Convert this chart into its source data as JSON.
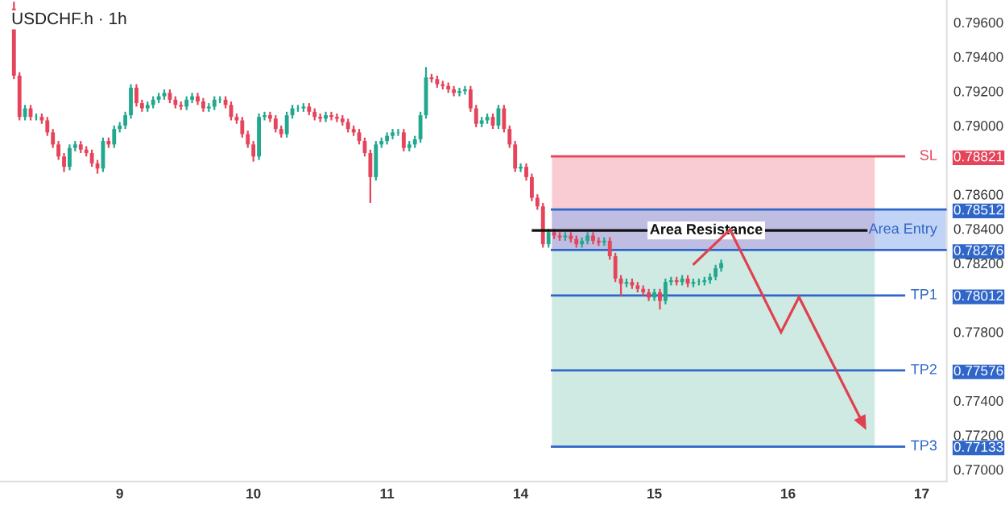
{
  "chart_data": {
    "type": "candlestick",
    "title": "USDCHF.h · 1h",
    "categories": [
      null,
      null,
      null,
      null,
      null,
      null,
      null,
      null,
      null,
      null,
      null,
      null,
      null,
      null,
      null,
      null,
      null,
      null,
      null,
      null,
      null,
      "9",
      null,
      null,
      null,
      null,
      null,
      null,
      null,
      null,
      null,
      null,
      null,
      null,
      null,
      null,
      null,
      null,
      null,
      null,
      null,
      null,
      null,
      null,
      null,
      "10",
      null,
      null,
      null,
      null,
      null,
      null,
      null,
      null,
      null,
      null,
      null,
      null,
      null,
      null,
      null,
      null,
      null,
      null,
      null,
      null,
      null,
      null,
      null,
      "11",
      null,
      null,
      null,
      null,
      null,
      null,
      null,
      null,
      null,
      null,
      null,
      null,
      null,
      null,
      null,
      null,
      null,
      null,
      null,
      null,
      null,
      null,
      null,
      "14",
      null,
      null,
      null,
      null,
      null,
      null,
      null,
      null,
      null,
      null,
      null,
      null,
      null,
      null,
      null,
      null,
      null,
      null,
      null,
      null,
      null,
      null,
      null,
      "15",
      null,
      null,
      null,
      null,
      null,
      null,
      null,
      null,
      null,
      null,
      null,
      null,
      null,
      null,
      null,
      null,
      null,
      null,
      null,
      null,
      null,
      null,
      null,
      "16",
      null,
      null,
      null,
      null,
      null,
      null,
      null,
      null,
      null,
      null,
      null,
      null,
      null,
      null,
      null,
      null,
      null,
      null,
      null,
      null,
      null,
      null,
      null,
      "17",
      null,
      null,
      null,
      null
    ],
    "ohlc": [
      null,
      null,
      [
        0.7968,
        0.7972,
        0.7927,
        0.7929
      ],
      [
        0.7929,
        0.7931,
        0.7903,
        0.7905
      ],
      [
        0.7905,
        0.7912,
        0.7903,
        0.791
      ],
      [
        0.791,
        0.7912,
        0.7903,
        0.7905
      ],
      [
        0.7905,
        0.7907,
        0.7903,
        0.7905
      ],
      [
        0.7905,
        0.7907,
        0.7901,
        0.7903
      ],
      [
        0.7903,
        0.7905,
        0.7894,
        0.7896
      ],
      [
        0.7896,
        0.7898,
        0.7887,
        0.7889
      ],
      [
        0.7889,
        0.7891,
        0.788,
        0.7882
      ],
      [
        0.7882,
        0.7884,
        0.7873,
        0.7876
      ],
      [
        0.7876,
        0.7889,
        0.7874,
        0.7887
      ],
      [
        0.7887,
        0.7891,
        0.7885,
        0.7889
      ],
      [
        0.7889,
        0.7891,
        0.7884,
        0.7886
      ],
      [
        0.7886,
        0.7888,
        0.7882,
        0.7884
      ],
      [
        0.7884,
        0.7886,
        0.7876,
        0.7878
      ],
      [
        0.7878,
        0.788,
        0.7872,
        0.7875
      ],
      [
        0.7875,
        0.7893,
        0.7873,
        0.7891
      ],
      [
        0.7891,
        0.7893,
        0.7887,
        0.7889
      ],
      [
        0.7889,
        0.79,
        0.7887,
        0.7898
      ],
      [
        0.7898,
        0.7902,
        0.7896,
        0.79
      ],
      [
        0.79,
        0.7908,
        0.7898,
        0.7906
      ],
      [
        0.7906,
        0.7924,
        0.7904,
        0.7922
      ],
      [
        0.7922,
        0.7924,
        0.7911,
        0.7913
      ],
      [
        0.7913,
        0.7915,
        0.7908,
        0.791
      ],
      [
        0.791,
        0.7914,
        0.7908,
        0.7912
      ],
      [
        0.7912,
        0.7917,
        0.791,
        0.7915
      ],
      [
        0.7915,
        0.7919,
        0.7913,
        0.7917
      ],
      [
        0.7917,
        0.7921,
        0.7915,
        0.7919
      ],
      [
        0.7919,
        0.7921,
        0.7913,
        0.7915
      ],
      [
        0.7915,
        0.7917,
        0.791,
        0.7912
      ],
      [
        0.7912,
        0.7914,
        0.7909,
        0.7911
      ],
      [
        0.7911,
        0.7917,
        0.7909,
        0.7915
      ],
      [
        0.7915,
        0.7919,
        0.7913,
        0.7917
      ],
      [
        0.7917,
        0.7919,
        0.7912,
        0.7914
      ],
      [
        0.7914,
        0.7916,
        0.7908,
        0.791
      ],
      [
        0.791,
        0.7913,
        0.7908,
        0.7911
      ],
      [
        0.7911,
        0.7917,
        0.7909,
        0.7915
      ],
      [
        0.7915,
        0.7917,
        0.7913,
        0.7915
      ],
      [
        0.7915,
        0.7917,
        0.791,
        0.7912
      ],
      [
        0.7912,
        0.7914,
        0.7903,
        0.7905
      ],
      [
        0.7905,
        0.7907,
        0.7901,
        0.7903
      ],
      [
        0.7903,
        0.7905,
        0.7893,
        0.7895
      ],
      [
        0.7895,
        0.7897,
        0.7887,
        0.7889
      ],
      [
        0.7889,
        0.7891,
        0.7879,
        0.7882
      ],
      [
        0.7882,
        0.7907,
        0.788,
        0.7905
      ],
      [
        0.7905,
        0.7908,
        0.7903,
        0.7906
      ],
      [
        0.7906,
        0.7908,
        0.7902,
        0.7904
      ],
      [
        0.7904,
        0.7906,
        0.7896,
        0.7898
      ],
      [
        0.7898,
        0.79,
        0.7893,
        0.7895
      ],
      [
        0.7895,
        0.7908,
        0.7893,
        0.7906
      ],
      [
        0.7906,
        0.7912,
        0.7904,
        0.791
      ],
      [
        0.791,
        0.7912,
        0.7908,
        0.791
      ],
      [
        0.791,
        0.7913,
        0.7908,
        0.7911
      ],
      [
        0.7911,
        0.7913,
        0.7906,
        0.7908
      ],
      [
        0.7908,
        0.791,
        0.7903,
        0.7905
      ],
      [
        0.7905,
        0.7907,
        0.7902,
        0.7904
      ],
      [
        0.7904,
        0.7908,
        0.7902,
        0.7906
      ],
      [
        0.7906,
        0.7908,
        0.7903,
        0.7905
      ],
      [
        0.7905,
        0.7907,
        0.7902,
        0.7904
      ],
      [
        0.7904,
        0.7906,
        0.79,
        0.7902
      ],
      [
        0.7902,
        0.7904,
        0.7896,
        0.7898
      ],
      [
        0.7898,
        0.79,
        0.7894,
        0.7896
      ],
      [
        0.7896,
        0.7898,
        0.7889,
        0.7891
      ],
      [
        0.7891,
        0.7893,
        0.7882,
        0.7884
      ],
      [
        0.7884,
        0.7886,
        0.7855,
        0.787
      ],
      [
        0.787,
        0.7891,
        0.7868,
        0.7889
      ],
      [
        0.7889,
        0.7893,
        0.7887,
        0.7891
      ],
      [
        0.7891,
        0.7896,
        0.7889,
        0.7894
      ],
      [
        0.7894,
        0.7898,
        0.7892,
        0.7896
      ],
      [
        0.7896,
        0.7898,
        0.7894,
        0.7896
      ],
      [
        0.7896,
        0.7898,
        0.7885,
        0.7887
      ],
      [
        0.7887,
        0.7891,
        0.7885,
        0.7889
      ],
      [
        0.7889,
        0.7894,
        0.7887,
        0.7892
      ],
      [
        0.7892,
        0.7908,
        0.789,
        0.7906
      ],
      [
        0.7906,
        0.7934,
        0.7904,
        0.7928
      ],
      [
        0.7928,
        0.793,
        0.7925,
        0.7927
      ],
      [
        0.7927,
        0.7929,
        0.7922,
        0.7924
      ],
      [
        0.7924,
        0.7926,
        0.7921,
        0.7923
      ],
      [
        0.7923,
        0.7925,
        0.7919,
        0.7921
      ],
      [
        0.7921,
        0.7923,
        0.7917,
        0.7919
      ],
      [
        0.7919,
        0.7922,
        0.7917,
        0.792
      ],
      [
        0.792,
        0.7923,
        0.7918,
        0.7921
      ],
      [
        0.7921,
        0.7923,
        0.7908,
        0.791
      ],
      [
        0.791,
        0.7912,
        0.7899,
        0.7901
      ],
      [
        0.7901,
        0.7905,
        0.7899,
        0.7903
      ],
      [
        0.7903,
        0.7907,
        0.7901,
        0.7905
      ],
      [
        0.7905,
        0.7907,
        0.7898,
        0.79
      ],
      [
        0.79,
        0.7912,
        0.7898,
        0.791
      ],
      [
        0.791,
        0.7912,
        0.7896,
        0.7898
      ],
      [
        0.7898,
        0.79,
        0.7887,
        0.7889
      ],
      [
        0.7889,
        0.7891,
        0.7873,
        0.7875
      ],
      [
        0.7875,
        0.7878,
        0.7873,
        0.7876
      ],
      [
        0.7876,
        0.7878,
        0.7868,
        0.787
      ],
      [
        0.787,
        0.7872,
        0.7856,
        0.7858
      ],
      [
        0.7858,
        0.786,
        0.7851,
        0.7853
      ],
      [
        0.7853,
        0.7855,
        0.7829,
        0.7831
      ],
      [
        0.7831,
        0.784,
        0.7829,
        0.7838
      ],
      [
        0.7838,
        0.784,
        0.7834,
        0.7836
      ],
      [
        0.7836,
        0.7838,
        0.7833,
        0.7835
      ],
      [
        0.7835,
        0.7838,
        0.7833,
        0.7836
      ],
      [
        0.7836,
        0.7838,
        0.7832,
        0.7834
      ],
      [
        0.7834,
        0.7836,
        0.7829,
        0.7831
      ],
      [
        0.7831,
        0.7835,
        0.7829,
        0.7833
      ],
      [
        0.7833,
        0.7838,
        0.7831,
        0.7836
      ],
      [
        0.7836,
        0.7838,
        0.7831,
        0.7833
      ],
      [
        0.7833,
        0.7835,
        0.783,
        0.7832
      ],
      [
        0.7832,
        0.7835,
        0.783,
        0.7833
      ],
      [
        0.7833,
        0.7835,
        0.7822,
        0.7824
      ],
      [
        0.7824,
        0.7826,
        0.7809,
        0.7811
      ],
      [
        0.7811,
        0.7813,
        0.7801,
        0.7808
      ],
      [
        0.7808,
        0.7811,
        0.7806,
        0.7809
      ],
      [
        0.7809,
        0.7811,
        0.7805,
        0.7807
      ],
      [
        0.7807,
        0.7809,
        0.7803,
        0.7805
      ],
      [
        0.7805,
        0.7807,
        0.7801,
        0.7803
      ],
      [
        0.7803,
        0.7805,
        0.7798,
        0.78
      ],
      [
        0.78,
        0.7805,
        0.7798,
        0.7803
      ],
      [
        0.7803,
        0.7805,
        0.7793,
        0.7798
      ],
      [
        0.7798,
        0.7811,
        0.7796,
        0.7809
      ],
      [
        0.7809,
        0.7812,
        0.7807,
        0.781
      ],
      [
        0.781,
        0.7812,
        0.7807,
        0.7809
      ],
      [
        0.7809,
        0.7813,
        0.7807,
        0.7811
      ],
      [
        0.7811,
        0.7813,
        0.7806,
        0.7808
      ],
      [
        0.7808,
        0.7811,
        0.7806,
        0.7809
      ],
      [
        0.7809,
        0.7811,
        0.7807,
        0.7809
      ],
      [
        0.7809,
        0.7812,
        0.7807,
        0.781
      ],
      [
        0.781,
        0.7814,
        0.7808,
        0.7812
      ],
      [
        0.7812,
        0.7819,
        0.781,
        0.7817
      ],
      [
        0.7817,
        0.7822,
        0.7815,
        0.782
      ],
      null,
      null,
      null,
      null,
      null,
      null,
      null,
      null,
      null,
      null,
      null,
      null,
      null,
      null,
      null,
      null,
      null,
      null,
      null,
      null,
      null,
      null,
      null,
      null,
      null,
      null,
      null,
      null,
      null,
      null,
      null,
      null,
      null,
      null,
      null,
      null,
      null,
      null,
      null,
      null
    ],
    "ylim": [
      0.7693,
      0.7973
    ],
    "yticks": [
      {
        "value": 0.796,
        "label": "0.79600"
      },
      {
        "value": 0.794,
        "label": "0.79400"
      },
      {
        "value": 0.792,
        "label": "0.79200"
      },
      {
        "value": 0.79,
        "label": "0.79000"
      },
      {
        "value": 0.78821,
        "label": "0.78821"
      },
      {
        "value": 0.786,
        "label": "0.78600"
      },
      {
        "value": 0.78512,
        "label": "0.78512"
      },
      {
        "value": 0.784,
        "label": "0.78400"
      },
      {
        "value": 0.78276,
        "label": "0.78276"
      },
      {
        "value": 0.782,
        "label": "0.78200"
      },
      {
        "value": 0.78012,
        "label": "0.78012"
      },
      {
        "value": 0.778,
        "label": "0.77800"
      },
      {
        "value": 0.77576,
        "label": "0.77576"
      },
      {
        "value": 0.774,
        "label": "0.77400"
      },
      {
        "value": 0.772,
        "label": "0.77200"
      },
      {
        "value": 0.77133,
        "label": "0.77133"
      },
      {
        "value": 0.77,
        "label": "0.77000"
      }
    ],
    "ref_lines": [
      {
        "axis": "y",
        "value": 0.78821,
        "label": "SL",
        "color": "#e5445a"
      },
      {
        "axis": "y",
        "value": 0.78512,
        "label": null,
        "color": "#2f66c8"
      },
      {
        "axis": "y",
        "value": 0.78276,
        "label": null,
        "color": "#2f66c8"
      },
      {
        "axis": "y",
        "value": 0.78012,
        "label": "TP1",
        "color": "#2f66c8"
      },
      {
        "axis": "y",
        "value": 0.77576,
        "label": "TP2",
        "color": "#2f66c8"
      },
      {
        "axis": "y",
        "value": 0.77133,
        "label": "TP3",
        "color": "#2f66c8"
      },
      {
        "axis": "y",
        "value": 0.7839,
        "label": "Area Resistance",
        "color": "#111111"
      }
    ],
    "bands": [
      {
        "axis": "y",
        "from": 0.78276,
        "to": 0.78821,
        "label": null,
        "color": "#f4a3ae"
      },
      {
        "axis": "y",
        "from": 0.77133,
        "to": 0.78276,
        "label": null,
        "color": "#a8d8cc"
      },
      {
        "axis": "y",
        "from": 0.78276,
        "to": 0.78512,
        "label": "Area Entry",
        "color": "#8fb0ee"
      }
    ]
  }
}
